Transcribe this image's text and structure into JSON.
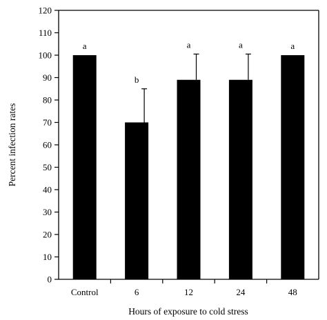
{
  "chart_data": {
    "type": "bar",
    "title": "",
    "xlabel": "Hours of exposure to cold stress",
    "ylabel": "Percent infection rates",
    "categories": [
      "Control",
      "6",
      "12",
      "24",
      "48"
    ],
    "values": [
      100,
      70,
      89,
      89,
      100
    ],
    "error": [
      0,
      15,
      11.5,
      11.5,
      0
    ],
    "significance_labels": [
      "a",
      "b",
      "a",
      "a",
      "a"
    ],
    "ylim": [
      0,
      120
    ],
    "yticks": [
      "0",
      "10",
      "20",
      "30",
      "40",
      "50",
      "60",
      "70",
      "80",
      "90",
      "100",
      "110",
      "120"
    ],
    "grid": false,
    "bar_color": "#000000",
    "legend": "none"
  }
}
